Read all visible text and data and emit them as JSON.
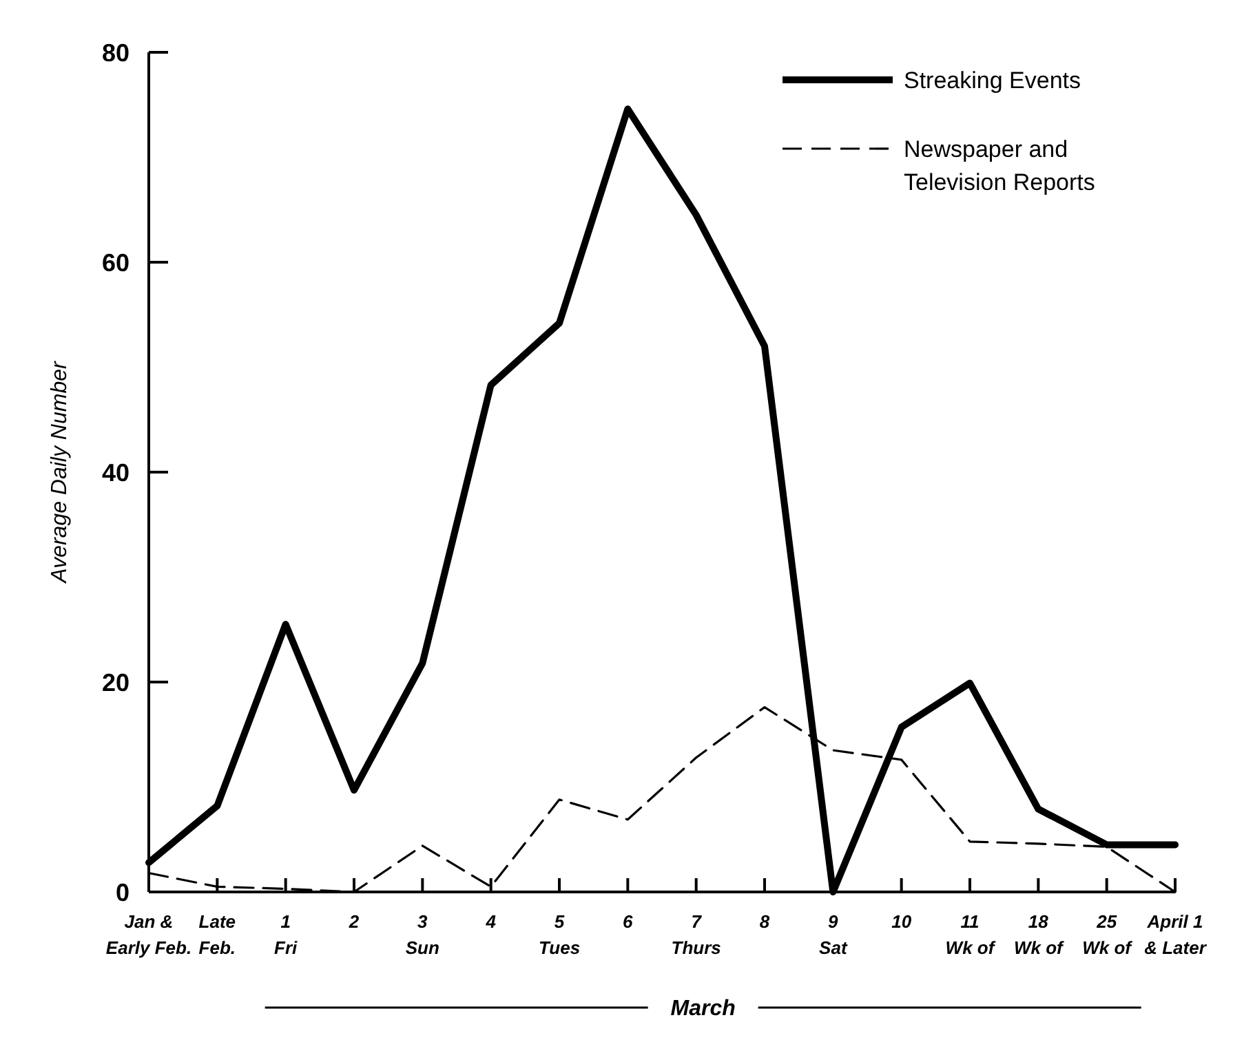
{
  "chart_data": {
    "type": "line",
    "ylabel": "Average Daily Number",
    "categories": [
      "Jan &\nEarly Feb.",
      "Late\nFeb.",
      "1\nFri",
      "2",
      "3\nSun",
      "4",
      "5\nTues",
      "6",
      "7\nThurs",
      "8",
      "9\nSat",
      "10",
      "11\nWk of",
      "18\nWk of",
      "25\nWk of",
      "April 1\n& Later"
    ],
    "series": [
      {
        "name": "Streaking Events",
        "color": "#000000",
        "line_style": "solid",
        "values": [
          2.8,
          8.2,
          25.5,
          9.7,
          21.8,
          48.3,
          54.2,
          74.6,
          64.5,
          52,
          0,
          15.7,
          19.9,
          7.9,
          4.5,
          4.5
        ]
      },
      {
        "name": "Newspaper and\nTelevision Reports",
        "color": "#000000",
        "line_style": "dashed",
        "values": [
          1.8,
          0.5,
          0.3,
          0,
          4.4,
          0.5,
          8.8,
          6.9,
          12.8,
          17.6,
          13.5,
          12.6,
          4.8,
          4.6,
          4.3,
          0
        ]
      }
    ],
    "ylim": [
      0,
      80
    ],
    "yticks": [
      0,
      20,
      40,
      60,
      80
    ],
    "grid": false,
    "legend": "top right",
    "marker": "none",
    "annotations": [
      "March"
    ]
  }
}
